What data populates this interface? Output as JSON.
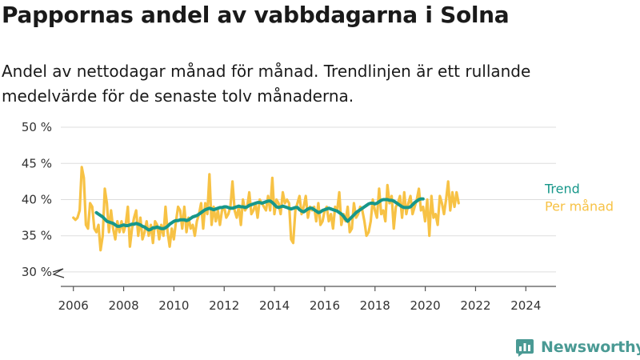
{
  "title": "Pappornas andel av vabbdagarna i Solna",
  "subtitle": "Andel av nettodagar månad för månad. Trendlinjen är ett rullande medelvärde för de senaste tolv månaderna.",
  "brand": {
    "name": "Newsworthy",
    "icon": "newsworthy-logo-icon"
  },
  "colors": {
    "trend": "#17978a",
    "monthly": "#f7c245",
    "axis": "#555555",
    "grid": "#dddddd"
  },
  "chart_data": {
    "type": "line",
    "x_unit": "year",
    "y_unit": "%",
    "ylim": [
      28,
      51
    ],
    "y_ticks": [
      30,
      35,
      40,
      45,
      50
    ],
    "y_tick_labels": [
      "30 %",
      "35 %",
      "40 %",
      "45 %",
      "50 %"
    ],
    "xlim": [
      2005.5,
      2025.2
    ],
    "x_ticks": [
      2006,
      2008,
      2010,
      2012,
      2014,
      2016,
      2018,
      2020,
      2022,
      2024
    ],
    "x_tick_labels": [
      "2006",
      "2008",
      "2010",
      "2012",
      "2014",
      "2016",
      "2018",
      "2020",
      "2022",
      "2024"
    ],
    "axis_break": true,
    "grid": "horizontal",
    "legend": "right, at line ends",
    "series": [
      {
        "name": "Per månad",
        "color": "#f7c245",
        "start": 2006.0,
        "step": 0.0833,
        "values": [
          37.5,
          37.2,
          37.5,
          38.5,
          44.5,
          43,
          36.5,
          36,
          39.5,
          39,
          36,
          35.5,
          36.5,
          33,
          35,
          41.5,
          39.5,
          35.5,
          38.5,
          36,
          34.5,
          37,
          35.5,
          37,
          35.5,
          36.5,
          39,
          33.5,
          36,
          37.5,
          38.5,
          35,
          37.5,
          34.5,
          35.5,
          37,
          35,
          36.5,
          34,
          37,
          36.5,
          34.5,
          36.5,
          35,
          39,
          35.5,
          33.5,
          36,
          34.5,
          37,
          39,
          38.5,
          36,
          39,
          35.5,
          37.5,
          36,
          36.5,
          35,
          37,
          38,
          39.5,
          36,
          39.5,
          38,
          43.5,
          36.5,
          39,
          37,
          38.5,
          36.5,
          38.5,
          39,
          37.5,
          38,
          39,
          42.5,
          38.5,
          37.5,
          39,
          36.5,
          40,
          38.5,
          39,
          41,
          38,
          38.5,
          39.5,
          37.5,
          40,
          39.5,
          39,
          38.5,
          40.5,
          38.5,
          43,
          38,
          40,
          39.5,
          38,
          41,
          39.5,
          40,
          39.5,
          34.5,
          34,
          38.5,
          39.5,
          40.5,
          38,
          39,
          40.5,
          37.5,
          39,
          38.5,
          39,
          37,
          39.5,
          36.5,
          37,
          38.5,
          39,
          37,
          38,
          36,
          39,
          38.5,
          41,
          36.5,
          38,
          37,
          39,
          35.5,
          36,
          39.5,
          37.5,
          38,
          39,
          38.5,
          37,
          35,
          35.5,
          37,
          40,
          38.5,
          37.5,
          41.5,
          38,
          38.5,
          37,
          42,
          39.5,
          40.5,
          36,
          39,
          39.5,
          40.5,
          37.5,
          41,
          38,
          39.5,
          40.5,
          38,
          39,
          40,
          41.5,
          38.5,
          39,
          37,
          40,
          35,
          40.5,
          37.5,
          38,
          36.5,
          40.5,
          39.5,
          38,
          40,
          42.5,
          38.5,
          41,
          39,
          41,
          39.5
        ]
      },
      {
        "name": "Trend",
        "color": "#17978a",
        "start": 2006.917,
        "step": 0.0833,
        "values": [
          38.2,
          38.0,
          37.8,
          37.6,
          37.3,
          37.0,
          36.9,
          36.8,
          36.7,
          36.5,
          36.3,
          36.3,
          36.4,
          36.5,
          36.4,
          36.4,
          36.5,
          36.6,
          36.6,
          36.7,
          36.6,
          36.5,
          36.3,
          36.2,
          36.0,
          35.8,
          35.9,
          36.1,
          36.1,
          36.2,
          36.1,
          36.0,
          36.0,
          36.1,
          36.3,
          36.6,
          36.8,
          37.0,
          37.1,
          37.1,
          37.2,
          37.2,
          37.2,
          37.1,
          37.2,
          37.4,
          37.6,
          37.7,
          37.8,
          38.0,
          38.2,
          38.4,
          38.6,
          38.7,
          38.8,
          38.7,
          38.6,
          38.7,
          38.8,
          38.9,
          38.9,
          39.0,
          39.0,
          38.9,
          38.8,
          38.8,
          38.9,
          39.0,
          39.1,
          39.0,
          39.0,
          38.9,
          39.0,
          39.2,
          39.3,
          39.4,
          39.5,
          39.6,
          39.6,
          39.5,
          39.6,
          39.7,
          39.8,
          39.8,
          39.6,
          39.3,
          39.0,
          38.9,
          39.0,
          39.1,
          39.0,
          38.9,
          38.8,
          38.7,
          38.8,
          38.9,
          38.9,
          38.6,
          38.4,
          38.3,
          38.5,
          38.7,
          38.8,
          38.8,
          38.6,
          38.4,
          38.2,
          38.3,
          38.5,
          38.6,
          38.7,
          38.8,
          38.7,
          38.6,
          38.5,
          38.4,
          38.2,
          38.0,
          37.7,
          37.3,
          37.0,
          37.3,
          37.6,
          37.9,
          38.2,
          38.4,
          38.6,
          38.8,
          39.0,
          39.2,
          39.4,
          39.5,
          39.5,
          39.4,
          39.5,
          39.7,
          39.9,
          40.0,
          40.0,
          40.0,
          39.9,
          39.9,
          39.8,
          39.6,
          39.4,
          39.2,
          39.0,
          38.9,
          38.9,
          38.9,
          39.0,
          39.3,
          39.6,
          39.8,
          40.0,
          40.1,
          40.1
        ]
      }
    ]
  }
}
